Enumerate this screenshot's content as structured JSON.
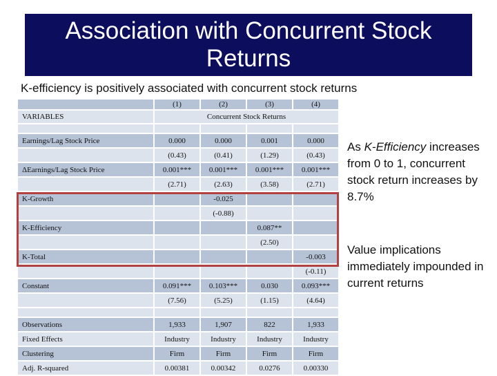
{
  "title": "Association with Concurrent Stock Returns",
  "subtitle": "K-efficiency is positively associated with concurrent stock returns",
  "table": {
    "col_numbers": [
      "(1)",
      "(2)",
      "(3)",
      "(4)"
    ],
    "variables_label": "VARIABLES",
    "dependent_label": "Concurrent  Stock Returns",
    "rows": {
      "earnings": {
        "label": "Earnings/Lag Stock Price",
        "coef": [
          "0.000",
          "0.000",
          "0.001",
          "0.000"
        ],
        "t": [
          "(0.43)",
          "(0.41)",
          "(1.29)",
          "(0.43)"
        ]
      },
      "d_earnings": {
        "label": "ΔEarnings/Lag Stock Price",
        "coef": [
          "0.001***",
          "0.001***",
          "0.001***",
          "0.001***"
        ],
        "t": [
          "(2.71)",
          "(2.63)",
          "(3.58)",
          "(2.71)"
        ]
      },
      "k_growth": {
        "label": "K-Growth",
        "coef": [
          "",
          "-0.025",
          "",
          ""
        ],
        "t": [
          "",
          "(-0.88)",
          "",
          ""
        ]
      },
      "k_efficiency": {
        "label": "K-Efficiency",
        "coef": [
          "",
          "",
          "0.087**",
          ""
        ],
        "t": [
          "",
          "",
          "(2.50)",
          ""
        ]
      },
      "k_total": {
        "label": "K-Total",
        "coef": [
          "",
          "",
          "",
          "-0.003"
        ],
        "t": [
          "",
          "",
          "",
          "(-0.11)"
        ]
      },
      "constant": {
        "label": "Constant",
        "coef": [
          "0.091***",
          "0.103***",
          "0.030",
          "0.093***"
        ],
        "t": [
          "(7.56)",
          "(5.25)",
          "(1.15)",
          "(4.64)"
        ]
      },
      "observations": {
        "label": "Observations",
        "values": [
          "1,933",
          "1,907",
          "822",
          "1,933"
        ]
      },
      "fixed_effects": {
        "label": "Fixed Effects",
        "values": [
          "Industry",
          "Industry",
          "Industry",
          "Industry"
        ]
      },
      "clustering": {
        "label": "Clustering",
        "values": [
          "Firm",
          "Firm",
          "Firm",
          "Firm"
        ]
      },
      "adj_r2": {
        "label": "Adj. R-squared",
        "values": [
          "0.00381",
          "0.00342",
          "0.0276",
          "0.00330"
        ]
      }
    }
  },
  "notes": {
    "note1": {
      "part1": "As ",
      "part2": "K-Efficiency",
      "part3": " increases from 0 to 1, concurrent stock return increases by 8.7%"
    },
    "note2": "Value implications immediately impounded in current returns"
  },
  "colors": {
    "title_bg": "#0d0d5e",
    "row_dark": "#b6c3d6",
    "row_light": "#dde3ec",
    "highlight": "#b34040"
  }
}
